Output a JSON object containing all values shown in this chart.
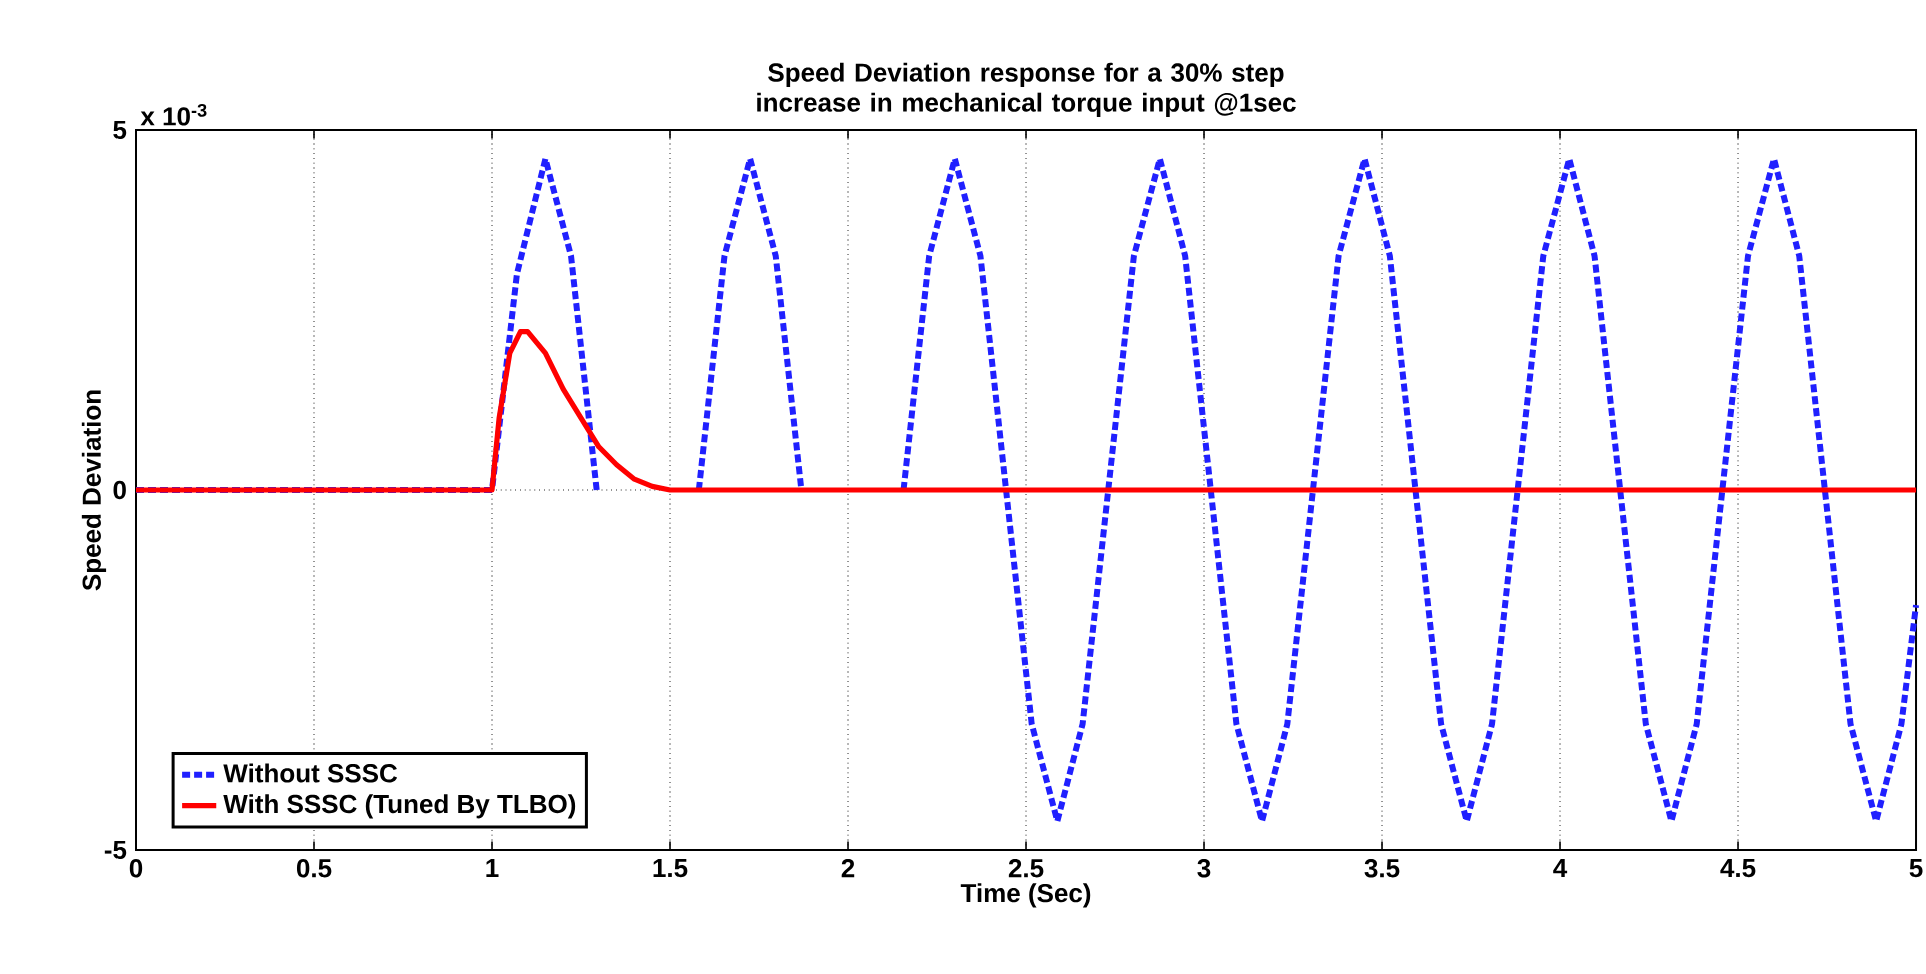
{
  "chart_data": {
    "type": "line",
    "title": "Speed Deviation response for a 30% step increase in mechanical torque input @1sec",
    "xlabel": "Time (Sec)",
    "ylabel": "Speed Deviation",
    "annotations": [
      "x 10$^{-3}$"
    ],
    "xlim": [
      0,
      5
    ],
    "xticks": [
      0,
      0.5,
      1,
      1.5,
      2,
      2.5,
      3,
      3.5,
      4,
      4.5,
      5
    ],
    "ylim": [
      -5,
      5
    ],
    "yticks": [
      -5,
      0,
      5
    ],
    "grid": true,
    "legend": "bottom left",
    "series": [
      {
        "name": "Without SSSC",
        "color": "#2020ff",
        "line_style": "dashed",
        "x": [
          0,
          1.0,
          1.07,
          1.15,
          1.222,
          1.294,
          1.366,
          1.438,
          1.509,
          1.581,
          1.653,
          1.725,
          1.797,
          1.869,
          1.941,
          2.013,
          2.084,
          2.156,
          2.228,
          2.3,
          2.372,
          2.444,
          2.516,
          2.588,
          2.659,
          2.731,
          2.803,
          2.876,
          2.947,
          3.019,
          3.091,
          3.163,
          3.234,
          3.306,
          3.378,
          3.451,
          3.522,
          3.594,
          3.666,
          3.738,
          3.809,
          3.881,
          3.953,
          4.026,
          4.097,
          4.169,
          4.241,
          4.313,
          4.384,
          4.456,
          4.528,
          4.601,
          4.672,
          4.744,
          4.816,
          4.888,
          4.959,
          5.0
        ],
        "values": [
          0,
          0,
          3.0,
          4.6,
          3.25,
          0,
          null,
          null,
          null,
          0,
          3.25,
          4.6,
          3.25,
          0,
          null,
          null,
          null,
          0,
          3.25,
          4.6,
          3.25,
          0,
          -3.25,
          -4.6,
          -3.25,
          0,
          3.25,
          4.6,
          3.25,
          0,
          -3.25,
          -4.6,
          -3.25,
          0,
          3.25,
          4.6,
          3.25,
          0,
          -3.25,
          -4.6,
          -3.25,
          0,
          3.25,
          4.6,
          3.25,
          0,
          -3.25,
          -4.6,
          -3.25,
          0,
          3.25,
          4.6,
          3.25,
          0,
          -3.25,
          -4.6,
          -3.25,
          -1.6
        ]
      },
      {
        "name": "With SSSC (Tuned By TLBO)",
        "color": "#ff0000",
        "line_style": "solid",
        "x": [
          0,
          1.0,
          1.02,
          1.05,
          1.08,
          1.1,
          1.15,
          1.2,
          1.25,
          1.3,
          1.35,
          1.4,
          1.45,
          1.5,
          5.0
        ],
        "values": [
          0,
          0,
          1.0,
          1.9,
          2.2,
          2.2,
          1.9,
          1.4,
          1.0,
          0.6,
          0.35,
          0.15,
          0.05,
          0,
          0
        ]
      }
    ]
  }
}
